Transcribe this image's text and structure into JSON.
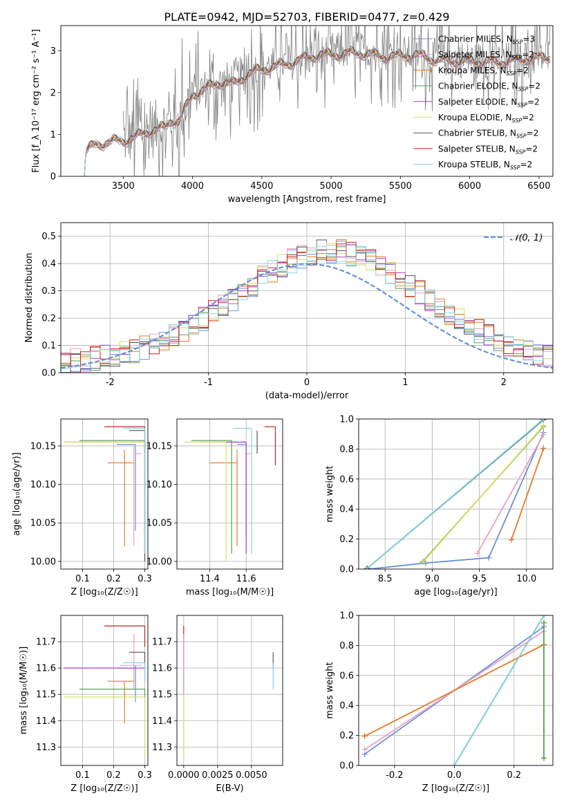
{
  "figure": {
    "title": "PLATE=0942, MJD=52703, FIBERID=0477, z=0.429"
  },
  "palette": {
    "Chabrier MILES": "#6a8fd6",
    "Salpeter MILES": "#e8a0c8",
    "Kroupa MILES": "#e07c22",
    "Chabrier ELODIE": "#5e9e5e",
    "Salpeter ELODIE": "#a040c8",
    "Kroupa ELODIE": "#d4e060",
    "Chabrier STELIB": "#555555",
    "Salpeter STELIB": "#c82020",
    "Kroupa STELIB": "#80d8e0",
    "data": "#7f7f7f",
    "normal": "#6a8fd6"
  },
  "chart_data": [
    {
      "id": "spectrum",
      "type": "line",
      "xlabel": "wavelength [Angstrom, rest frame]",
      "ylabel": "Flux [f_λ 10⁻¹⁷ erg cm⁻² s⁻¹ A⁻¹]",
      "xlim": [
        3050,
        6600
      ],
      "ylim": [
        0,
        3.6
      ],
      "xticks": [
        3500,
        4000,
        4500,
        5000,
        5500,
        6000,
        6500
      ],
      "yticks": [
        0,
        1,
        2,
        3
      ],
      "legend_position": "top-right",
      "legend": [
        {
          "name": "Chabrier MILES",
          "label": "Chabrier MILES, N",
          "sub": "SSP",
          "suffix": "=3"
        },
        {
          "name": "Salpeter MILES",
          "label": "Salpeter MILES, N",
          "sub": "SSP",
          "suffix": "=2"
        },
        {
          "name": "Kroupa MILES",
          "label": "Kroupa MILES, N",
          "sub": "SSP",
          "suffix": "=2"
        },
        {
          "name": "Chabrier ELODIE",
          "label": "Chabrier ELODIE, N",
          "sub": "SSP",
          "suffix": "=2"
        },
        {
          "name": "Salpeter ELODIE",
          "label": "Salpeter ELODIE, N",
          "sub": "SSP",
          "suffix": "=2"
        },
        {
          "name": "Kroupa ELODIE",
          "label": "Kroupa ELODIE, N",
          "sub": "SSP",
          "suffix": "=2"
        },
        {
          "name": "Chabrier STELIB",
          "label": "Chabrier STELIB, N",
          "sub": "SSP",
          "suffix": "=2"
        },
        {
          "name": "Salpeter STELIB",
          "label": "Salpeter STELIB, N",
          "sub": "SSP",
          "suffix": "=2"
        },
        {
          "name": "Kroupa STELIB",
          "label": "Kroupa STELIB, N",
          "sub": "SSP",
          "suffix": "=2"
        }
      ],
      "model_continuum": [
        [
          3220,
          0
        ],
        [
          3230,
          0.6
        ],
        [
          3300,
          0.75
        ],
        [
          3400,
          0.82
        ],
        [
          3500,
          0.85
        ],
        [
          3600,
          0.95
        ],
        [
          3700,
          1.1
        ],
        [
          3800,
          1.15
        ],
        [
          3850,
          1.35
        ],
        [
          3900,
          1.3
        ],
        [
          4000,
          1.95
        ],
        [
          4100,
          2.1
        ],
        [
          4200,
          2.25
        ],
        [
          4300,
          2.2
        ],
        [
          4400,
          2.45
        ],
        [
          4500,
          2.55
        ],
        [
          4700,
          2.7
        ],
        [
          4900,
          2.9
        ],
        [
          5000,
          2.9
        ],
        [
          5200,
          2.95
        ],
        [
          5400,
          2.85
        ],
        [
          5600,
          2.9
        ],
        [
          5800,
          2.75
        ],
        [
          6000,
          2.75
        ],
        [
          6200,
          2.72
        ],
        [
          6400,
          2.8
        ],
        [
          6580,
          2.85
        ]
      ],
      "data_continuum": [
        [
          3500,
          0.9
        ],
        [
          3700,
          1.1
        ],
        [
          3900,
          1.35
        ],
        [
          4000,
          2.0
        ],
        [
          4300,
          2.3
        ],
        [
          4500,
          2.6
        ],
        [
          4800,
          2.8
        ],
        [
          5000,
          3.0
        ],
        [
          5300,
          3.0
        ],
        [
          5600,
          2.9
        ],
        [
          5900,
          2.8
        ],
        [
          6200,
          2.75
        ],
        [
          6500,
          2.85
        ]
      ]
    },
    {
      "id": "residuals",
      "type": "histogram",
      "xlabel": "(data-model)/error",
      "ylabel": "Normed distribution",
      "xlim": [
        -2.5,
        2.5
      ],
      "ylim": [
        0,
        0.55
      ],
      "xticks": [
        -2,
        -1,
        0,
        1,
        2
      ],
      "yticks": [
        0.0,
        0.1,
        0.2,
        0.3,
        0.4,
        0.5
      ],
      "grid": true,
      "legend": "𝒩(0, 1)",
      "bin_width": 0.1
    },
    {
      "id": "age-vs-Z",
      "type": "errorbar",
      "xlabel": "Z [log₁₀(Z/Z☉)]",
      "ylabel": "age  [log₁₀(age/yr)]",
      "xlim": [
        0.03,
        0.31
      ],
      "ylim": [
        9.99,
        10.185
      ],
      "xticks": [
        0.1,
        0.2,
        0.3
      ],
      "yticks": [
        10.0,
        10.05,
        10.1,
        10.15
      ],
      "points": [
        {
          "model": "Chabrier MILES",
          "x": 0.27,
          "y": 10.152,
          "xl": 0.21,
          "xr": 0.27,
          "yl": 10.04,
          "yh": 10.152
        },
        {
          "model": "Salpeter MILES",
          "x": 0.265,
          "y": 10.14,
          "xl": 0.265,
          "xr": 0.29,
          "yl": 10.02,
          "yh": 10.15
        },
        {
          "model": "Kroupa MILES",
          "x": 0.235,
          "y": 10.128,
          "xl": 0.18,
          "xr": 0.265,
          "yl": 10.02,
          "yh": 10.145
        },
        {
          "model": "Chabrier ELODIE",
          "x": 0.3,
          "y": 10.157,
          "xl": 0.09,
          "xr": 0.3,
          "yl": 10.01,
          "yh": 10.157
        },
        {
          "model": "Salpeter ELODIE",
          "x": 0.3,
          "y": 10.155,
          "xl": 0.04,
          "xr": 0.3,
          "yl": 10.01,
          "yh": 10.155
        },
        {
          "model": "Kroupa ELODIE",
          "x": 0.3,
          "y": 10.155,
          "xl": 0.04,
          "xr": 0.3,
          "yl": 10.0,
          "yh": 10.155
        },
        {
          "model": "Chabrier STELIB",
          "x": 0.3,
          "y": 10.17,
          "xl": 0.25,
          "xr": 0.3,
          "yl": 10.0,
          "yh": 10.17
        },
        {
          "model": "Salpeter STELIB",
          "x": 0.3,
          "y": 10.175,
          "xl": 0.17,
          "xr": 0.3,
          "yl": 10.14,
          "yh": 10.175
        },
        {
          "model": "Kroupa STELIB",
          "x": 0.3,
          "y": 10.173,
          "xl": 0.23,
          "xr": 0.3,
          "yl": 10.01,
          "yh": 10.173
        }
      ]
    },
    {
      "id": "age-vs-mass",
      "type": "errorbar",
      "xlabel": "mass [log₁₀(M/M☉)]",
      "ylabel": "",
      "xlim": [
        11.22,
        11.8
      ],
      "ylim": [
        9.99,
        10.185
      ],
      "xticks": [
        11.4,
        11.6
      ],
      "yticks": [
        10.0,
        10.05,
        10.1,
        10.15
      ],
      "points": [
        {
          "model": "Chabrier MILES",
          "x": 11.6,
          "y": 10.152,
          "xl": 11.55,
          "xr": 11.6,
          "yl": 10.04,
          "yh": 10.152
        },
        {
          "model": "Salpeter MILES",
          "x": 11.6,
          "y": 10.14,
          "xl": 11.6,
          "xr": 11.63,
          "yl": 10.02,
          "yh": 10.15
        },
        {
          "model": "Kroupa MILES",
          "x": 11.55,
          "y": 10.128,
          "xl": 11.4,
          "xr": 11.55,
          "yl": 10.02,
          "yh": 10.145
        },
        {
          "model": "Chabrier ELODIE",
          "x": 11.52,
          "y": 10.157,
          "xl": 11.3,
          "xr": 11.52,
          "yl": 10.01,
          "yh": 10.157
        },
        {
          "model": "Salpeter ELODIE",
          "x": 11.6,
          "y": 10.155,
          "xl": 11.35,
          "xr": 11.6,
          "yl": 10.01,
          "yh": 10.155
        },
        {
          "model": "Kroupa ELODIE",
          "x": 11.49,
          "y": 10.155,
          "xl": 11.26,
          "xr": 11.49,
          "yl": 10.0,
          "yh": 10.155
        },
        {
          "model": "Chabrier STELIB",
          "x": 11.66,
          "y": 10.17,
          "xl": 11.66,
          "xr": 11.66,
          "yl": 10.14,
          "yh": 10.17
        },
        {
          "model": "Salpeter STELIB",
          "x": 11.76,
          "y": 10.175,
          "xl": 11.7,
          "xr": 11.76,
          "yl": 10.125,
          "yh": 10.175
        },
        {
          "model": "Kroupa STELIB",
          "x": 11.63,
          "y": 10.173,
          "xl": 11.53,
          "xr": 11.63,
          "yl": 10.01,
          "yh": 10.173
        }
      ]
    },
    {
      "id": "weight-vs-age",
      "type": "line",
      "xlabel": "age  [log₁₀(age/yr)]",
      "ylabel": "mass weight",
      "xlim": [
        8.22,
        10.28
      ],
      "ylim": [
        0,
        1.0
      ],
      "xticks": [
        8.5,
        9.0,
        9.5,
        10.0
      ],
      "yticks": [
        0.0,
        0.2,
        0.4,
        0.6,
        0.8,
        1.0
      ],
      "grid": true,
      "series": [
        {
          "model": "Chabrier MILES",
          "x": [
            8.33,
            8.93,
            9.6,
            10.18
          ],
          "y": [
            0.0,
            0.04,
            0.075,
            0.91
          ]
        },
        {
          "model": "Salpeter MILES",
          "x": [
            9.48,
            10.18
          ],
          "y": [
            0.105,
            0.895
          ]
        },
        {
          "model": "Kroupa MILES",
          "x": [
            9.84,
            10.18
          ],
          "y": [
            0.195,
            0.805
          ]
        },
        {
          "model": "Chabrier ELODIE",
          "x": [
            8.9,
            10.18
          ],
          "y": [
            0.05,
            0.95
          ]
        },
        {
          "model": "Kroupa ELODIE",
          "x": [
            8.9,
            10.18
          ],
          "y": [
            0.045,
            0.955
          ]
        },
        {
          "model": "Chabrier STELIB",
          "x": [
            8.31,
            10.18
          ],
          "y": [
            0.005,
            0.995
          ]
        },
        {
          "model": "Kroupa STELIB",
          "x": [
            8.3,
            10.18
          ],
          "y": [
            0.0,
            1.0
          ]
        }
      ]
    },
    {
      "id": "mass-vs-Z",
      "type": "errorbar",
      "xlabel": "Z [log₁₀(Z/Z☉)]",
      "ylabel": "mass [log₁₀(M/M☉)]",
      "xlim": [
        0.03,
        0.31
      ],
      "ylim": [
        11.23,
        11.8
      ],
      "xticks": [
        0.1,
        0.2,
        0.3
      ],
      "yticks": [
        11.3,
        11.4,
        11.5,
        11.6,
        11.7
      ],
      "points": [
        {
          "model": "Chabrier MILES",
          "x": 0.27,
          "y": 11.6,
          "xl": 0.21,
          "xr": 0.27,
          "yl": 11.47,
          "yh": 11.61
        },
        {
          "model": "Salpeter MILES",
          "x": 0.265,
          "y": 11.61,
          "xl": 0.22,
          "xr": 0.29,
          "yl": 11.52,
          "yh": 11.73
        },
        {
          "model": "Kroupa MILES",
          "x": 0.235,
          "y": 11.55,
          "xl": 0.18,
          "xr": 0.265,
          "yl": 11.39,
          "yh": 11.55
        },
        {
          "model": "Chabrier ELODIE",
          "x": 0.3,
          "y": 11.52,
          "xl": 0.09,
          "xr": 0.3,
          "yl": 11.47,
          "yh": 11.52
        },
        {
          "model": "Salpeter ELODIE",
          "x": 0.3,
          "y": 11.6,
          "xl": 0.04,
          "xr": 0.3,
          "yl": 11.55,
          "yh": 11.6
        },
        {
          "model": "Kroupa ELODIE",
          "x": 0.3,
          "y": 11.49,
          "xl": 0.04,
          "xr": 0.3,
          "yl": 11.26,
          "yh": 11.49
        },
        {
          "model": "Chabrier STELIB",
          "x": 0.3,
          "y": 11.66,
          "xl": 0.25,
          "xr": 0.3,
          "yl": 11.6,
          "yh": 11.66
        },
        {
          "model": "Salpeter STELIB",
          "x": 0.3,
          "y": 11.76,
          "xl": 0.17,
          "xr": 0.3,
          "yl": 11.68,
          "yh": 11.76
        },
        {
          "model": "Kroupa STELIB",
          "x": 0.3,
          "y": 11.62,
          "xl": 0.23,
          "xr": 0.3,
          "yl": 11.55,
          "yh": 11.62
        }
      ]
    },
    {
      "id": "mass-vs-ebv",
      "type": "errorbar",
      "xlabel": "E(B-V)",
      "ylabel": "",
      "xlim": [
        -0.0005,
        0.0073
      ],
      "ylim": [
        11.23,
        11.8
      ],
      "xtick_labels": [
        "0.0000",
        "0.0025",
        "0.0050"
      ],
      "xticks": [
        0.0,
        0.0025,
        0.005
      ],
      "yticks": [
        11.3,
        11.4,
        11.5,
        11.6,
        11.7
      ],
      "points": [
        {
          "model": "Salpeter STELIB",
          "x": 0.0,
          "y": 11.76,
          "yl": 11.6,
          "yh": 11.76
        },
        {
          "model": "Salpeter ELODIE",
          "x": 0.0,
          "y": 11.6,
          "yl": 11.5,
          "yh": 11.6
        },
        {
          "model": "Salpeter MILES",
          "x": 0.0,
          "y": 11.61,
          "yl": 11.5,
          "yh": 11.73
        },
        {
          "model": "Kroupa ELODIE",
          "x": 0.0,
          "y": 11.49,
          "yl": 11.26,
          "yh": 11.49
        },
        {
          "model": "Chabrier STELIB",
          "x": 0.0066,
          "y": 11.63,
          "yl": 11.6,
          "yh": 11.66
        },
        {
          "model": "Kroupa STELIB",
          "x": 0.0066,
          "y": 11.58,
          "yl": 11.52,
          "yh": 11.62
        }
      ]
    },
    {
      "id": "weight-vs-Z",
      "type": "line",
      "xlabel": "Z [log₁₀(Z/Z☉)]",
      "ylabel": "mass weight",
      "xlim": [
        -0.32,
        0.33
      ],
      "ylim": [
        0,
        1.0
      ],
      "xticks": [
        -0.2,
        0.0,
        0.2
      ],
      "yticks": [
        0.0,
        0.2,
        0.4,
        0.6,
        0.8,
        1.0
      ],
      "grid": true,
      "series": [
        {
          "model": "Chabrier MILES",
          "x": [
            -0.3,
            0.3
          ],
          "y": [
            0.075,
            0.925
          ]
        },
        {
          "model": "Salpeter MILES",
          "x": [
            -0.3,
            0.3
          ],
          "y": [
            0.105,
            0.895
          ]
        },
        {
          "model": "Kroupa MILES",
          "x": [
            -0.3,
            0.3
          ],
          "y": [
            0.195,
            0.805
          ]
        },
        {
          "model": "Chabrier STELIB",
          "x": [
            0.0,
            0.3
          ],
          "y": [
            0.0,
            1.0
          ]
        },
        {
          "model": "Kroupa STELIB",
          "x": [
            0.0,
            0.3
          ],
          "y": [
            0.0,
            1.0
          ]
        },
        {
          "model": "Kroupa ELODIE",
          "x": [
            0.3,
            0.3
          ],
          "y": [
            0.045,
            0.955
          ]
        },
        {
          "model": "Chabrier ELODIE",
          "x": [
            0.3,
            0.3
          ],
          "y": [
            0.05,
            0.95
          ]
        }
      ]
    }
  ]
}
